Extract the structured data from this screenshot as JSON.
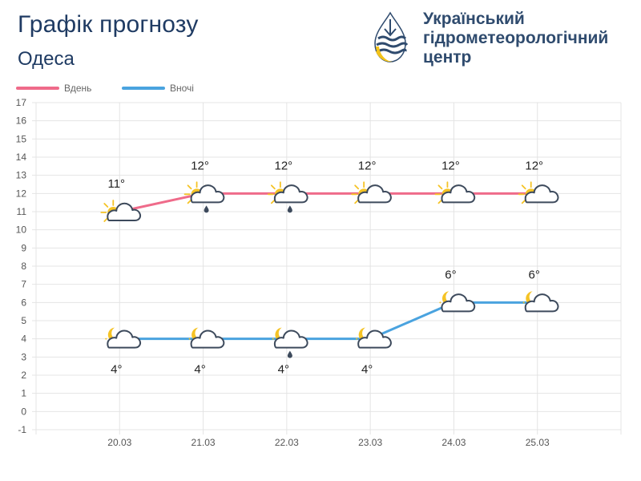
{
  "header": {
    "title": "Графік прогнозу",
    "city": "Одеса"
  },
  "org": {
    "name_lines": [
      "Український",
      "гідрометеорологічний",
      "центр"
    ]
  },
  "chart_data": {
    "type": "line",
    "categories": [
      "20.03",
      "21.03",
      "22.03",
      "23.03",
      "24.03",
      "25.03"
    ],
    "ylim": [
      -1,
      17
    ],
    "yticks": [
      -1,
      0,
      1,
      2,
      3,
      4,
      5,
      6,
      7,
      8,
      9,
      10,
      11,
      12,
      13,
      14,
      15,
      16,
      17
    ],
    "grid": true,
    "legend": "top-left",
    "series": [
      {
        "name": "Вдень",
        "color": "#ef6b8a",
        "values": [
          11,
          12,
          12,
          12,
          12,
          12
        ],
        "labels": [
          "11°",
          "12°",
          "12°",
          "12°",
          "12°",
          "12°"
        ],
        "icons": [
          "sun-cloud-icon",
          "sun-cloud-rain-icon",
          "sun-cloud-rain-icon",
          "sun-cloud-icon",
          "sun-cloud-icon",
          "sun-cloud-icon"
        ]
      },
      {
        "name": "Вночі",
        "color": "#4aa3df",
        "values": [
          4,
          4,
          4,
          4,
          6,
          6
        ],
        "labels": [
          "4°",
          "4°",
          "4°",
          "4°",
          "6°",
          "6°"
        ],
        "icons": [
          "moon-cloud-icon",
          "moon-cloud-icon",
          "moon-cloud-rain-icon",
          "moon-cloud-icon",
          "moon-cloud-icon",
          "moon-cloud-icon"
        ]
      }
    ]
  }
}
